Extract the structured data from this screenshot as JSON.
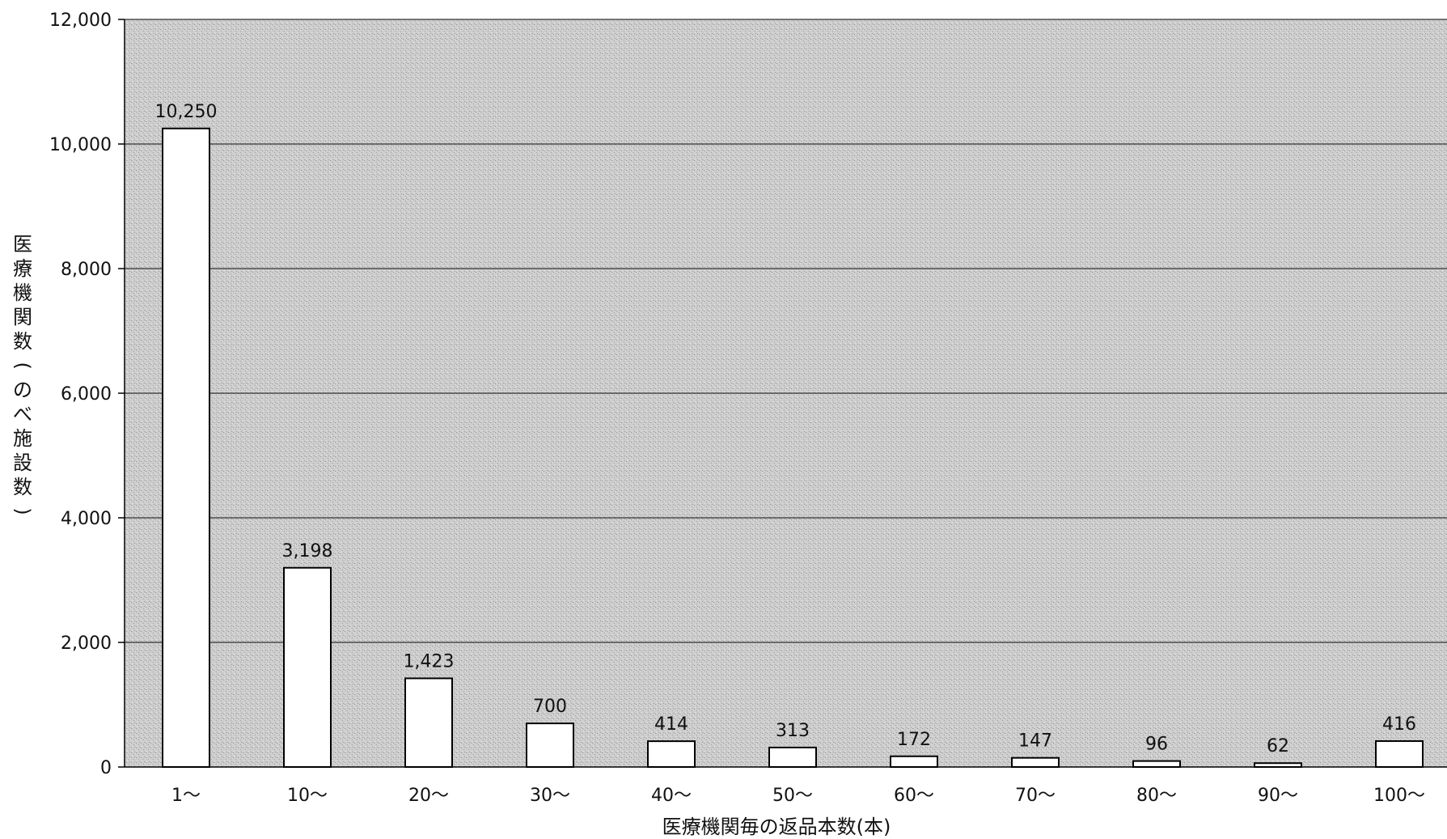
{
  "chart_data": {
    "type": "bar",
    "title": "",
    "xlabel": "医療機関毎の返品本数(本)",
    "ylabel": [
      "医",
      "療",
      "機",
      "関",
      "数",
      "(",
      "の",
      "べ",
      "施",
      "設",
      "数",
      ")"
    ],
    "categories": [
      "1〜",
      "10〜",
      "20〜",
      "30〜",
      "40〜",
      "50〜",
      "60〜",
      "70〜",
      "80〜",
      "90〜",
      "100〜"
    ],
    "values": [
      10250,
      3198,
      1423,
      700,
      414,
      313,
      172,
      147,
      96,
      62,
      416
    ],
    "value_labels": [
      "10,250",
      "3,198",
      "1,423",
      "700",
      "414",
      "313",
      "172",
      "147",
      "96",
      "62",
      "416"
    ],
    "ylim": [
      0,
      12000
    ],
    "yticks": [
      0,
      2000,
      4000,
      6000,
      8000,
      10000,
      12000
    ],
    "ytick_labels": [
      "0",
      "2,000",
      "4,000",
      "6,000",
      "8,000",
      "10,000",
      "12,000"
    ],
    "grid": true,
    "legend": "none",
    "colors": {
      "plot_background": "#c9c9c9",
      "bar_fill": "#ffffff",
      "bar_stroke": "#000000",
      "grid": "#333333"
    }
  }
}
